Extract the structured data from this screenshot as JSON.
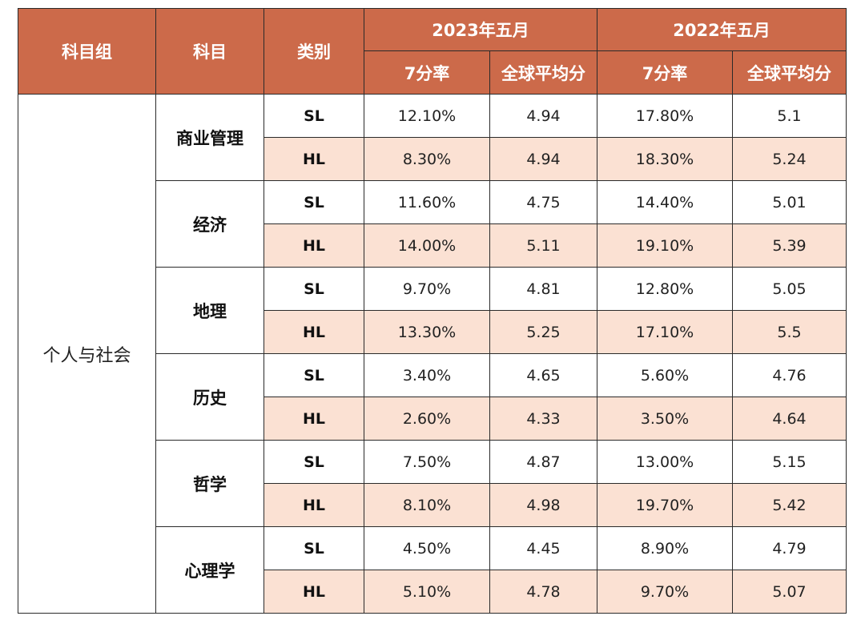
{
  "header": {
    "group_col": "科目组",
    "subject_col": "科目",
    "level_col": "类别",
    "year1": "2023年五月",
    "year2": "2022年五月",
    "rate_label": "7分率",
    "avg_label": "全球平均分"
  },
  "group": "个人与社会",
  "subjects": [
    {
      "name": "商业管理",
      "rows": [
        {
          "level": "SL",
          "r2023": "12.10%",
          "a2023": "4.94",
          "r2022": "17.80%",
          "a2022": "5.1"
        },
        {
          "level": "HL",
          "r2023": "8.30%",
          "a2023": "4.94",
          "r2022": "18.30%",
          "a2022": "5.24"
        }
      ]
    },
    {
      "name": "经济",
      "rows": [
        {
          "level": "SL",
          "r2023": "11.60%",
          "a2023": "4.75",
          "r2022": "14.40%",
          "a2022": "5.01"
        },
        {
          "level": "HL",
          "r2023": "14.00%",
          "a2023": "5.11",
          "r2022": "19.10%",
          "a2022": "5.39"
        }
      ]
    },
    {
      "name": "地理",
      "rows": [
        {
          "level": "SL",
          "r2023": "9.70%",
          "a2023": "4.81",
          "r2022": "12.80%",
          "a2022": "5.05"
        },
        {
          "level": "HL",
          "r2023": "13.30%",
          "a2023": "5.25",
          "r2022": "17.10%",
          "a2022": "5.5"
        }
      ]
    },
    {
      "name": "历史",
      "rows": [
        {
          "level": "SL",
          "r2023": "3.40%",
          "a2023": "4.65",
          "r2022": "5.60%",
          "a2022": "4.76"
        },
        {
          "level": "HL",
          "r2023": "2.60%",
          "a2023": "4.33",
          "r2022": "3.50%",
          "a2022": "4.64"
        }
      ]
    },
    {
      "name": "哲学",
      "rows": [
        {
          "level": "SL",
          "r2023": "7.50%",
          "a2023": "4.87",
          "r2022": "13.00%",
          "a2022": "5.15"
        },
        {
          "level": "HL",
          "r2023": "8.10%",
          "a2023": "4.98",
          "r2022": "19.70%",
          "a2022": "5.42"
        }
      ]
    },
    {
      "name": "心理学",
      "rows": [
        {
          "level": "SL",
          "r2023": "4.50%",
          "a2023": "4.45",
          "r2022": "8.90%",
          "a2022": "4.79"
        },
        {
          "level": "HL",
          "r2023": "5.10%",
          "a2023": "4.78",
          "r2022": "9.70%",
          "a2022": "5.07"
        }
      ]
    }
  ],
  "colors": {
    "header_bg": "#cc6a4a",
    "header_text": "#ffffff",
    "hl_row_bg": "#fbe1d3",
    "border": "#2a2a2a"
  }
}
